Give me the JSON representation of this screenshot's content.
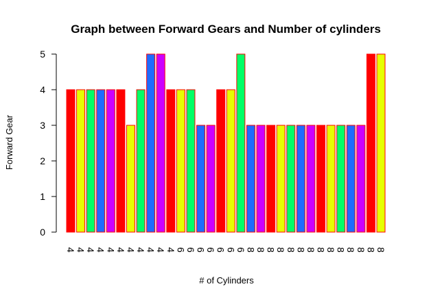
{
  "chart_data": {
    "type": "bar",
    "title": "Graph between Forward Gears and Number of cylinders",
    "xlabel": "# of Cylinders",
    "ylabel": "Forward Gear",
    "ylim": [
      0,
      5
    ],
    "yticks": [
      0,
      1,
      2,
      3,
      4,
      5
    ],
    "categories": [
      "4",
      "4",
      "4",
      "4",
      "4",
      "4",
      "4",
      "4",
      "4",
      "4",
      "4",
      "6",
      "6",
      "6",
      "6",
      "6",
      "6",
      "6",
      "8",
      "8",
      "8",
      "8",
      "8",
      "8",
      "8",
      "8",
      "8",
      "8",
      "8",
      "8",
      "8",
      "8"
    ],
    "values": [
      4,
      4,
      4,
      4,
      4,
      4,
      3,
      4,
      5,
      5,
      4,
      4,
      4,
      3,
      3,
      4,
      4,
      5,
      3,
      3,
      3,
      3,
      3,
      3,
      3,
      3,
      3,
      3,
      3,
      3,
      5,
      5
    ],
    "bar_colors": [
      "#FF0000",
      "#E6FF00",
      "#00FF66",
      "#1E6BFF",
      "#CC00FF"
    ],
    "bar_border_color": "#FF0000",
    "grid": false,
    "legend": "none"
  }
}
